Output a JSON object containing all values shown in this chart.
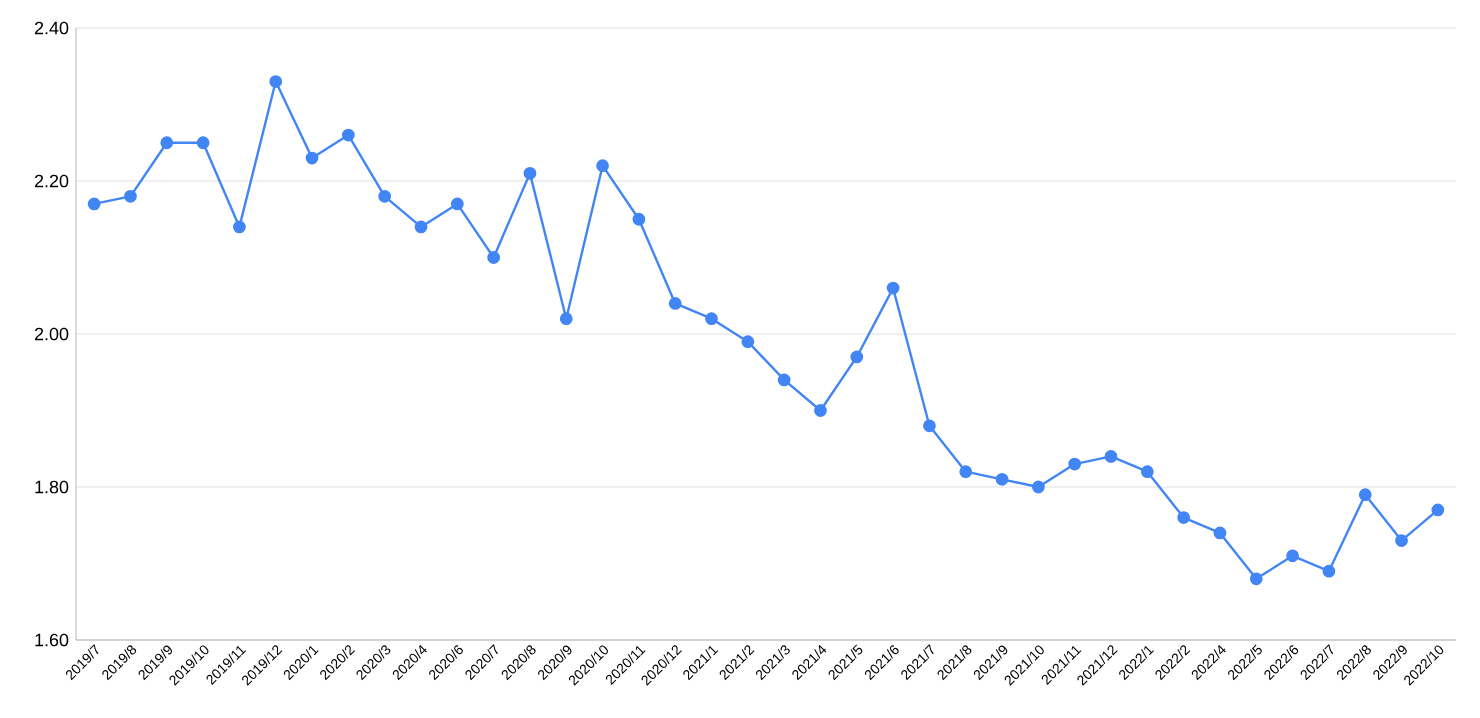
{
  "chart_data": {
    "type": "line",
    "categories": [
      "2019/7",
      "2019/8",
      "2019/9",
      "2019/10",
      "2019/11",
      "2019/12",
      "2020/1",
      "2020/2",
      "2020/3",
      "2020/4",
      "2020/6",
      "2020/7",
      "2020/8",
      "2020/9",
      "2020/10",
      "2020/11",
      "2020/12",
      "2021/1",
      "2021/2",
      "2021/3",
      "2021/4",
      "2021/5",
      "2021/6",
      "2021/7",
      "2021/8",
      "2021/9",
      "2021/10",
      "2021/11",
      "2021/12",
      "2022/1",
      "2022/2",
      "2022/4",
      "2022/5",
      "2022/6",
      "2022/7",
      "2022/8",
      "2022/9",
      "2022/10"
    ],
    "series": [
      {
        "color": "#4285f4",
        "values": [
          2.17,
          2.18,
          2.25,
          2.25,
          2.14,
          2.33,
          2.23,
          2.26,
          2.18,
          2.14,
          2.17,
          2.1,
          2.21,
          2.02,
          2.22,
          2.15,
          2.04,
          2.02,
          1.99,
          1.94,
          1.9,
          1.97,
          2.06,
          1.88,
          1.82,
          1.81,
          1.8,
          1.83,
          1.84,
          1.82,
          1.76,
          1.74,
          1.68,
          1.71,
          1.69,
          1.79,
          1.73,
          1.77
        ]
      }
    ],
    "ylim": [
      1.6,
      2.4
    ],
    "yticks": [
      {
        "value": 1.6,
        "label": "1.60"
      },
      {
        "value": 1.8,
        "label": "1.80"
      },
      {
        "value": 2.0,
        "label": "2.00"
      },
      {
        "value": 2.2,
        "label": "2.20"
      },
      {
        "value": 2.4,
        "label": "2.40"
      }
    ],
    "grid": "y",
    "marker": "circle",
    "line_style": "solid"
  }
}
